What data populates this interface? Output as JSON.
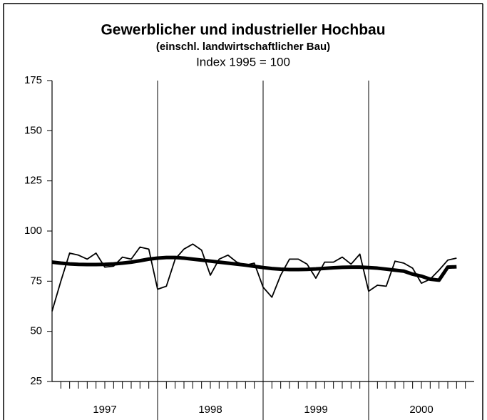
{
  "chart_data": {
    "type": "line",
    "title": "Gewerblicher und industrieller Hochbau",
    "subtitle": "(einschl. landwirtschaftlicher Bau)",
    "index_note": "Index 1995 = 100",
    "x_groups": [
      "1997",
      "1998",
      "1999",
      "2000"
    ],
    "categories": [
      null,
      null,
      null,
      null,
      null,
      null,
      null,
      null,
      null,
      null,
      null,
      null,
      null,
      null,
      null,
      null,
      null,
      null,
      null,
      null,
      null,
      null,
      null,
      null,
      null,
      null,
      null,
      null,
      null,
      null,
      null,
      null,
      null,
      null,
      null,
      null,
      null,
      null,
      null,
      null,
      null,
      null,
      null,
      null,
      null,
      null,
      null
    ],
    "series": [
      {
        "color": "#000000",
        "width": 1.8,
        "values": [
          60,
          75,
          89,
          88,
          86,
          89,
          82,
          82.5,
          87,
          86,
          92,
          91,
          71,
          72.5,
          86,
          91,
          93.5,
          90.5,
          78,
          86,
          88,
          84.5,
          83,
          84,
          72,
          67,
          78,
          86,
          86,
          83.5,
          76.5,
          84.5,
          84.5,
          87,
          83.5,
          88.5,
          70,
          73,
          72.5,
          85,
          84,
          81.5,
          74,
          76,
          80.5,
          85.5,
          86.5
        ]
      },
      {
        "color": "#000000",
        "width": 5,
        "values": [
          84.5,
          84,
          83.6,
          83.4,
          83.3,
          83.3,
          83.4,
          83.6,
          84,
          84.5,
          85.2,
          86,
          86.5,
          86.8,
          86.8,
          86.5,
          86,
          85.5,
          85,
          84.5,
          84,
          83.5,
          83,
          82.4,
          81.8,
          81.3,
          81,
          80.8,
          80.8,
          80.9,
          81.1,
          81.4,
          81.7,
          81.9,
          82,
          82,
          81.8,
          81.5,
          81,
          80.5,
          80,
          78.5,
          77.5,
          76,
          75.5,
          82,
          82.2
        ]
      }
    ],
    "ylim": [
      25,
      175
    ],
    "yticks": [
      25,
      50,
      75,
      100,
      125,
      150,
      175
    ]
  }
}
